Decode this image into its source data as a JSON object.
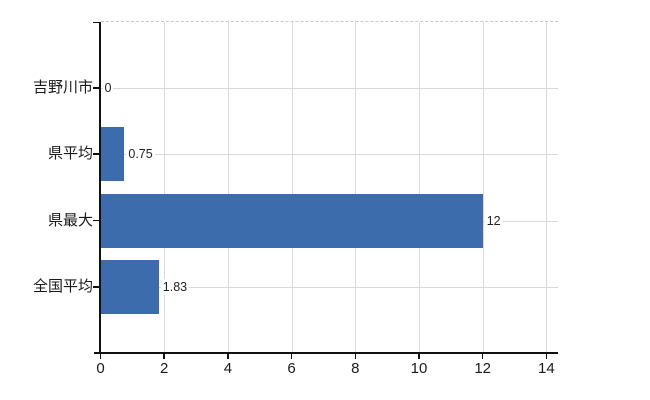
{
  "chart_data": {
    "type": "bar",
    "orientation": "horizontal",
    "title": "",
    "xlabel": "",
    "ylabel": "",
    "categories": [
      "吉野川市",
      "県平均",
      "県最大",
      "全国平均"
    ],
    "values": [
      0,
      0.75,
      12,
      1.83
    ],
    "value_labels": [
      "0",
      "0.75",
      "12",
      "1.83"
    ],
    "x_ticks": [
      0,
      2,
      4,
      6,
      8,
      10,
      12,
      14
    ],
    "xlim": [
      0,
      14.4
    ],
    "grid": true,
    "legend_position": "none",
    "colors": {
      "bar": "#3c6cab",
      "gridline": "#d9d9d9",
      "top_border": "#c9c9c9",
      "axis": "#111111",
      "text": "#1a1a1a",
      "value_text": "#222222",
      "background": "#ffffff"
    }
  }
}
